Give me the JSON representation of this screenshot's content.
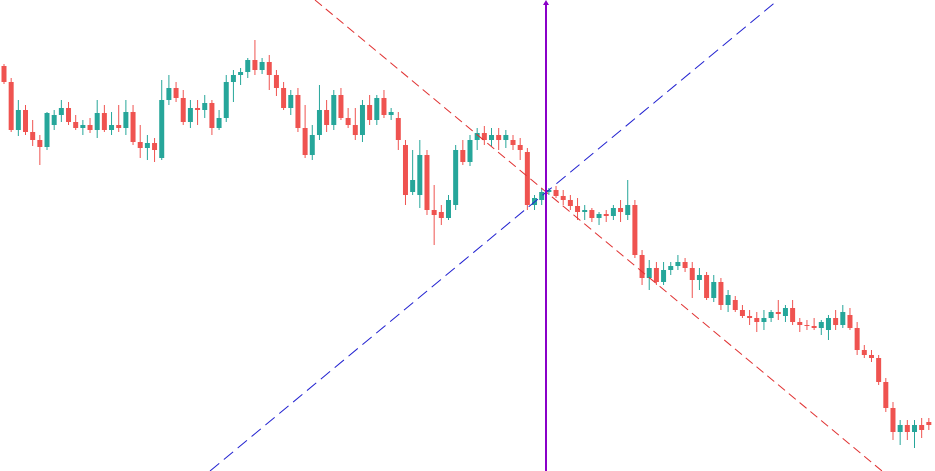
{
  "chart_data": {
    "type": "candlestick",
    "ylim": [
      471,
      0
    ],
    "up_color": "#26a69a",
    "down_color": "#ef5350",
    "ohlc": [
      [
        66,
        64,
        84,
        82
      ],
      [
        82,
        78,
        132,
        130
      ],
      [
        130,
        100,
        136,
        110
      ],
      [
        110,
        105,
        135,
        132
      ],
      [
        132,
        120,
        146,
        140
      ],
      [
        140,
        135,
        165,
        147
      ],
      [
        147,
        112,
        150,
        113
      ],
      [
        125,
        110,
        130,
        115
      ],
      [
        115,
        100,
        122,
        108
      ],
      [
        108,
        102,
        125,
        122
      ],
      [
        122,
        115,
        130,
        128
      ],
      [
        128,
        120,
        135,
        125
      ],
      [
        125,
        118,
        133,
        130
      ],
      [
        130,
        100,
        138,
        113
      ],
      [
        113,
        105,
        132,
        130
      ],
      [
        130,
        112,
        135,
        125
      ],
      [
        125,
        105,
        132,
        128
      ],
      [
        128,
        100,
        135,
        112
      ],
      [
        112,
        105,
        145,
        142
      ],
      [
        142,
        125,
        158,
        148
      ],
      [
        148,
        135,
        160,
        143
      ],
      [
        143,
        138,
        162,
        150
      ],
      [
        158,
        80,
        160,
        100
      ],
      [
        100,
        75,
        105,
        88
      ],
      [
        88,
        82,
        102,
        98
      ],
      [
        98,
        90,
        125,
        122
      ],
      [
        122,
        100,
        128,
        108
      ],
      [
        108,
        100,
        125,
        110
      ],
      [
        110,
        95,
        118,
        103
      ],
      [
        103,
        100,
        135,
        128
      ],
      [
        128,
        110,
        130,
        118
      ],
      [
        118,
        75,
        122,
        82
      ],
      [
        82,
        70,
        102,
        75
      ],
      [
        75,
        68,
        85,
        72
      ],
      [
        72,
        58,
        78,
        60
      ],
      [
        60,
        40,
        75,
        70
      ],
      [
        70,
        58,
        74,
        62
      ],
      [
        62,
        55,
        90,
        75
      ],
      [
        75,
        70,
        96,
        88
      ],
      [
        88,
        82,
        110,
        108
      ],
      [
        108,
        90,
        115,
        95
      ],
      [
        95,
        88,
        132,
        128
      ],
      [
        128,
        105,
        158,
        155
      ],
      [
        155,
        125,
        160,
        135
      ],
      [
        135,
        85,
        140,
        110
      ],
      [
        110,
        100,
        132,
        125
      ],
      [
        125,
        90,
        130,
        95
      ],
      [
        95,
        88,
        120,
        118
      ],
      [
        118,
        108,
        128,
        125
      ],
      [
        125,
        108,
        140,
        135
      ],
      [
        135,
        100,
        142,
        105
      ],
      [
        105,
        95,
        125,
        120
      ],
      [
        120,
        95,
        125,
        98
      ],
      [
        98,
        90,
        118,
        115
      ],
      [
        115,
        108,
        120,
        112
      ],
      [
        118,
        112,
        150,
        140
      ],
      [
        145,
        140,
        205,
        195
      ],
      [
        192,
        150,
        195,
        180
      ],
      [
        195,
        140,
        208,
        155
      ],
      [
        155,
        150,
        215,
        210
      ],
      [
        210,
        185,
        245,
        215
      ],
      [
        212,
        205,
        225,
        218
      ],
      [
        218,
        195,
        220,
        200
      ],
      [
        205,
        145,
        210,
        150
      ],
      [
        150,
        140,
        165,
        162
      ],
      [
        162,
        135,
        166,
        140
      ],
      [
        140,
        128,
        150,
        133
      ],
      [
        133,
        126,
        145,
        140
      ],
      [
        140,
        128,
        146,
        135
      ],
      [
        135,
        128,
        150,
        140
      ],
      [
        140,
        130,
        148,
        135
      ],
      [
        140,
        135,
        150,
        145
      ],
      [
        145,
        138,
        160,
        150
      ],
      [
        152,
        148,
        210,
        205
      ],
      [
        205,
        195,
        210,
        198
      ],
      [
        200,
        188,
        205,
        192
      ],
      [
        192,
        188,
        195,
        190
      ],
      [
        190,
        186,
        198,
        196
      ],
      [
        196,
        190,
        205,
        200
      ],
      [
        200,
        195,
        210,
        206
      ],
      [
        206,
        198,
        220,
        212
      ],
      [
        212,
        205,
        220,
        210
      ],
      [
        210,
        208,
        222,
        218
      ],
      [
        218,
        212,
        225,
        214
      ],
      [
        214,
        210,
        222,
        216
      ],
      [
        216,
        205,
        220,
        208
      ],
      [
        208,
        200,
        222,
        212
      ],
      [
        215,
        180,
        220,
        205
      ],
      [
        205,
        200,
        258,
        255
      ],
      [
        255,
        250,
        285,
        278
      ],
      [
        278,
        260,
        290,
        268
      ],
      [
        268,
        262,
        285,
        282
      ],
      [
        282,
        262,
        285,
        270
      ],
      [
        270,
        262,
        275,
        266
      ],
      [
        266,
        255,
        270,
        262
      ],
      [
        262,
        258,
        272,
        268
      ],
      [
        268,
        262,
        298,
        280
      ],
      [
        280,
        268,
        290,
        275
      ],
      [
        275,
        272,
        300,
        298
      ],
      [
        298,
        275,
        302,
        282
      ],
      [
        282,
        278,
        310,
        305
      ],
      [
        305,
        290,
        312,
        295
      ],
      [
        300,
        296,
        312,
        310
      ],
      [
        310,
        305,
        318,
        316
      ],
      [
        316,
        310,
        325,
        318
      ],
      [
        318,
        312,
        332,
        322
      ],
      [
        322,
        310,
        330,
        318
      ],
      [
        318,
        310,
        322,
        312
      ],
      [
        312,
        300,
        320,
        314
      ],
      [
        316,
        305,
        322,
        308
      ],
      [
        308,
        300,
        325,
        322
      ],
      [
        322,
        318,
        332,
        325
      ],
      [
        325,
        320,
        330,
        326
      ],
      [
        326,
        318,
        330,
        328
      ],
      [
        328,
        320,
        335,
        322
      ],
      [
        330,
        315,
        340,
        318
      ],
      [
        318,
        310,
        330,
        325
      ],
      [
        325,
        305,
        328,
        312
      ],
      [
        315,
        308,
        330,
        328
      ],
      [
        328,
        322,
        355,
        350
      ],
      [
        350,
        345,
        358,
        355
      ],
      [
        355,
        350,
        362,
        358
      ],
      [
        358,
        355,
        385,
        382
      ],
      [
        382,
        378,
        412,
        408
      ],
      [
        408,
        402,
        440,
        432
      ],
      [
        432,
        420,
        445,
        425
      ],
      [
        425,
        420,
        440,
        432
      ],
      [
        432,
        420,
        448,
        425
      ],
      [
        425,
        418,
        438,
        430
      ],
      [
        422,
        418,
        430,
        425
      ]
    ]
  }
}
